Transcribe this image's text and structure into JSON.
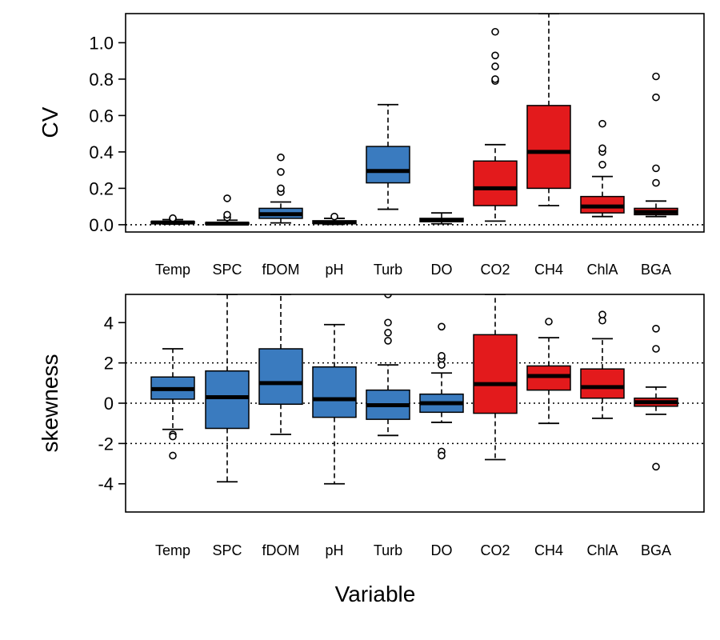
{
  "chart_data": [
    {
      "type": "boxplot",
      "ylabel": "CV",
      "ylim": [
        -0.04,
        1.16
      ],
      "yticks": [
        0.0,
        0.2,
        0.4,
        0.6,
        0.8,
        1.0
      ],
      "ytick_labels": [
        "0.0",
        "0.2",
        "0.4",
        "0.6",
        "0.8",
        "1.0"
      ],
      "reference_lines": [
        0
      ],
      "categories": [
        "Temp",
        "SPC",
        "fDOM",
        "pH",
        "Turb",
        "DO",
        "CO2",
        "CH4",
        "ChlA",
        "BGA"
      ],
      "colors": {
        "blue": "#3a7bbf",
        "red": "#e31a1c"
      },
      "boxes": [
        {
          "label": "Temp",
          "color": "blue",
          "whisker_low": 0.003,
          "q1": 0.008,
          "median": 0.012,
          "q3": 0.018,
          "whisker_high": 0.028,
          "outliers": [
            0.032,
            0.036
          ]
        },
        {
          "label": "SPC",
          "color": "blue",
          "whisker_low": 0.0,
          "q1": 0.002,
          "median": 0.006,
          "q3": 0.012,
          "whisker_high": 0.025,
          "outliers": [
            0.04,
            0.055,
            0.145
          ]
        },
        {
          "label": "fDOM",
          "color": "blue",
          "whisker_low": 0.01,
          "q1": 0.035,
          "median": 0.058,
          "q3": 0.09,
          "whisker_high": 0.125,
          "outliers": [
            0.18,
            0.2,
            0.29,
            0.37
          ]
        },
        {
          "label": "pH",
          "color": "blue",
          "whisker_low": 0.002,
          "q1": 0.007,
          "median": 0.013,
          "q3": 0.022,
          "whisker_high": 0.035,
          "outliers": [
            0.045
          ]
        },
        {
          "label": "Turb",
          "color": "blue",
          "whisker_low": 0.085,
          "q1": 0.23,
          "median": 0.295,
          "q3": 0.43,
          "whisker_high": 0.66,
          "outliers": []
        },
        {
          "label": "DO",
          "color": "blue",
          "whisker_low": 0.005,
          "q1": 0.017,
          "median": 0.025,
          "q3": 0.035,
          "whisker_high": 0.065,
          "outliers": []
        },
        {
          "label": "CO2",
          "color": "red",
          "whisker_low": 0.02,
          "q1": 0.105,
          "median": 0.2,
          "q3": 0.35,
          "whisker_high": 0.44,
          "outliers": [
            0.79,
            0.8,
            0.87,
            0.93,
            1.06
          ]
        },
        {
          "label": "CH4",
          "color": "red",
          "whisker_low": 0.105,
          "q1": 0.2,
          "median": 0.4,
          "q3": 0.655,
          "whisker_high": 1.16,
          "outliers": []
        },
        {
          "label": "ChlA",
          "color": "red",
          "whisker_low": 0.045,
          "q1": 0.065,
          "median": 0.1,
          "q3": 0.155,
          "whisker_high": 0.265,
          "outliers": [
            0.33,
            0.4,
            0.42,
            0.555
          ]
        },
        {
          "label": "BGA",
          "color": "red",
          "whisker_low": 0.045,
          "q1": 0.055,
          "median": 0.07,
          "q3": 0.09,
          "whisker_high": 0.13,
          "outliers": [
            0.23,
            0.31,
            0.7,
            0.815
          ]
        }
      ]
    },
    {
      "type": "boxplot",
      "ylabel": "skewness",
      "xlabel": "Variable",
      "ylim": [
        -5.4,
        5.4
      ],
      "yticks": [
        -4,
        -2,
        0,
        2,
        4
      ],
      "ytick_labels": [
        "-4",
        "-2",
        "0",
        "2",
        "4"
      ],
      "reference_lines": [
        -2,
        0,
        2
      ],
      "categories": [
        "Temp",
        "SPC",
        "fDOM",
        "pH",
        "Turb",
        "DO",
        "CO2",
        "CH4",
        "ChlA",
        "BGA"
      ],
      "colors": {
        "blue": "#3a7bbf",
        "red": "#e31a1c"
      },
      "boxes": [
        {
          "label": "Temp",
          "color": "blue",
          "whisker_low": -1.3,
          "q1": 0.2,
          "median": 0.7,
          "q3": 1.3,
          "whisker_high": 2.7,
          "outliers": [
            -1.55,
            -1.65,
            -2.6
          ]
        },
        {
          "label": "SPC",
          "color": "blue",
          "whisker_low": -3.9,
          "q1": -1.25,
          "median": 0.3,
          "q3": 1.6,
          "whisker_high": 5.4,
          "outliers": []
        },
        {
          "label": "fDOM",
          "color": "blue",
          "whisker_low": -1.55,
          "q1": -0.05,
          "median": 1.0,
          "q3": 2.7,
          "whisker_high": 5.4,
          "outliers": []
        },
        {
          "label": "pH",
          "color": "blue",
          "whisker_low": -4.0,
          "q1": -0.7,
          "median": 0.2,
          "q3": 1.8,
          "whisker_high": 3.9,
          "outliers": []
        },
        {
          "label": "Turb",
          "color": "blue",
          "whisker_low": -1.6,
          "q1": -0.8,
          "median": -0.1,
          "q3": 0.65,
          "whisker_high": 1.9,
          "outliers": [
            3.1,
            3.5,
            4.0,
            5.4
          ]
        },
        {
          "label": "DO",
          "color": "blue",
          "whisker_low": -0.95,
          "q1": -0.45,
          "median": 0.0,
          "q3": 0.45,
          "whisker_high": 1.5,
          "outliers": [
            -2.4,
            -2.6,
            1.9,
            2.2,
            2.35,
            3.8
          ]
        },
        {
          "label": "CO2",
          "color": "red",
          "whisker_low": -2.8,
          "q1": -0.5,
          "median": 0.95,
          "q3": 3.4,
          "whisker_high": 5.4,
          "outliers": []
        },
        {
          "label": "CH4",
          "color": "red",
          "whisker_low": -1.0,
          "q1": 0.65,
          "median": 1.35,
          "q3": 1.85,
          "whisker_high": 3.25,
          "outliers": [
            4.05
          ]
        },
        {
          "label": "ChlA",
          "color": "red",
          "whisker_low": -0.75,
          "q1": 0.25,
          "median": 0.8,
          "q3": 1.7,
          "whisker_high": 3.2,
          "outliers": [
            4.1,
            4.4
          ]
        },
        {
          "label": "BGA",
          "color": "red",
          "whisker_low": -0.55,
          "q1": -0.15,
          "median": 0.05,
          "q3": 0.25,
          "whisker_high": 0.8,
          "outliers": [
            -3.15,
            2.7,
            3.7
          ]
        }
      ]
    }
  ]
}
